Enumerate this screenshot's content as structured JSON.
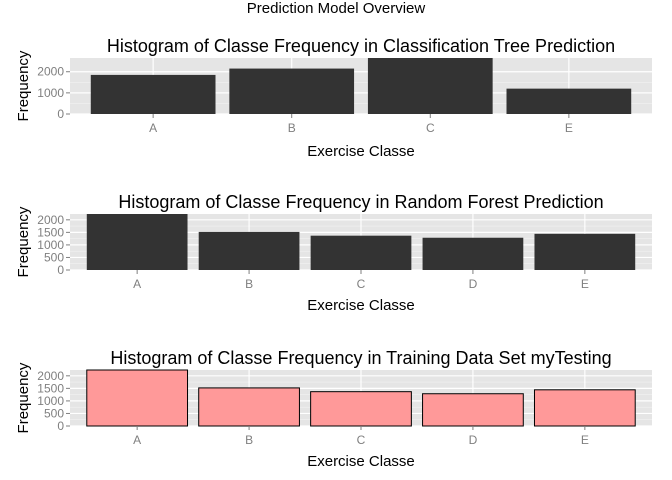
{
  "figure": {
    "title": "Prediction Model Overview",
    "panel_background": "#e5e5e5",
    "grid_color": "#ffffff"
  },
  "chart_data": [
    {
      "type": "bar",
      "title": "Histogram of Classe Frequency in Classification Tree Prediction",
      "xlabel": "Exercise Classe",
      "ylabel": "Frequency",
      "categories": [
        "A",
        "B",
        "C",
        "E"
      ],
      "values": [
        1850,
        2150,
        2650,
        1200
      ],
      "ylim": [
        0,
        2650
      ],
      "yticks": [
        0,
        1000,
        2000
      ],
      "fill": "#333333",
      "stroke": "none",
      "grid": true
    },
    {
      "type": "bar",
      "title": "Histogram of Classe Frequency in Random Forest Prediction",
      "xlabel": "Exercise Classe",
      "ylabel": "Frequency",
      "categories": [
        "A",
        "B",
        "C",
        "D",
        "E"
      ],
      "values": [
        2232,
        1518,
        1368,
        1286,
        1442
      ],
      "ylim": [
        0,
        2232
      ],
      "yticks": [
        0,
        500,
        1000,
        1500,
        2000
      ],
      "fill": "#333333",
      "stroke": "none",
      "grid": true
    },
    {
      "type": "bar",
      "title": "Histogram of Classe Frequency in Training Data Set myTesting",
      "xlabel": "Exercise Classe",
      "ylabel": "Frequency",
      "categories": [
        "A",
        "B",
        "C",
        "D",
        "E"
      ],
      "values": [
        2232,
        1518,
        1368,
        1286,
        1442
      ],
      "ylim": [
        0,
        2232
      ],
      "yticks": [
        0,
        500,
        1000,
        1500,
        2000
      ],
      "fill": "#ff9999",
      "stroke": "#000000",
      "grid": true
    }
  ]
}
